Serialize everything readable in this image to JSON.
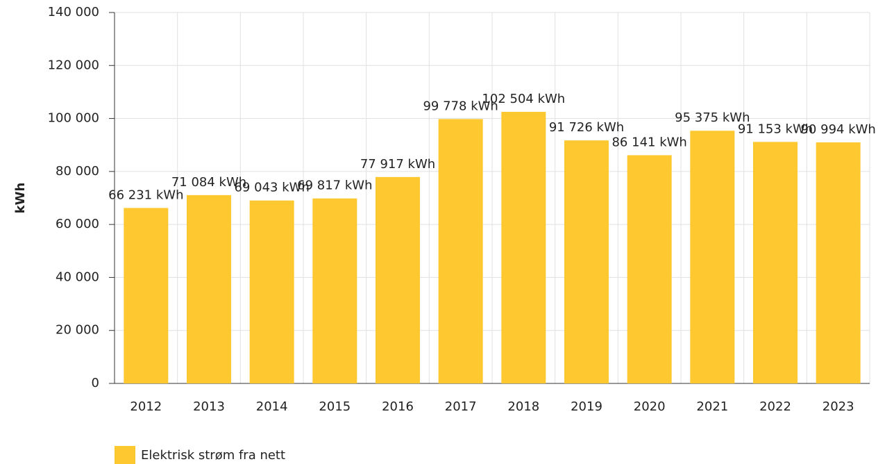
{
  "chart_data": {
    "type": "bar",
    "y_label": "kWh",
    "categories": [
      "2012",
      "2013",
      "2014",
      "2015",
      "2016",
      "2017",
      "2018",
      "2019",
      "2020",
      "2021",
      "2022",
      "2023"
    ],
    "series": [
      {
        "name": "Elektrisk strøm fra nett",
        "color": "#fdc830",
        "values": [
          66231,
          71084,
          69043,
          69817,
          77917,
          99778,
          102504,
          91726,
          86141,
          95375,
          91153,
          90994
        ],
        "value_labels": [
          "66 231 kWh",
          "71 084 kWh",
          "69 043 kWh",
          "69 817 kWh",
          "77 917 kWh",
          "99 778 kWh",
          "102 504 kWh",
          "91 726 kWh",
          "86 141 kWh",
          "95 375 kWh",
          "91 153 kWh",
          "90 994 kWh"
        ]
      }
    ],
    "ylim": [
      0,
      140000
    ],
    "yticks": [
      0,
      {
        "value": 20000,
        "label": "20 000"
      },
      {
        "value": 40000,
        "label": "40 000"
      },
      {
        "value": 60000,
        "label": "60 000"
      },
      {
        "value": 80000,
        "label": "80 000"
      },
      {
        "value": 100000,
        "label": "100 000"
      },
      {
        "value": 120000,
        "label": "120 000"
      },
      {
        "value": 140000,
        "label": "140 000"
      }
    ],
    "grid": true
  }
}
